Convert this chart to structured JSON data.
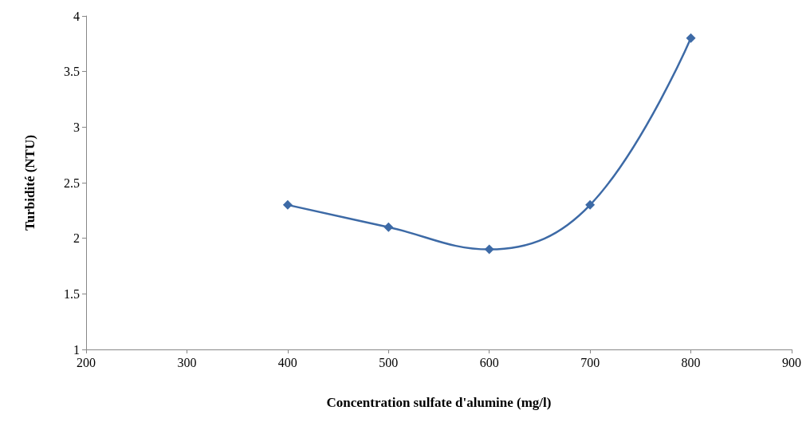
{
  "chart_data": {
    "type": "line",
    "xlabel": "Concentration sulfate d'alumine (mg/l)",
    "ylabel": "Turbidité (NTU)",
    "x": [
      400,
      500,
      600,
      700,
      800
    ],
    "series": [
      {
        "color": "#3d6aa6",
        "values": [
          2.3,
          2.1,
          1.9,
          2.3,
          3.8
        ]
      }
    ],
    "xlim": [
      200,
      900
    ],
    "xticks": [
      200,
      300,
      400,
      500,
      600,
      700,
      800,
      900
    ],
    "ylim": [
      1,
      4
    ],
    "yticks": [
      1,
      1.5,
      2,
      2.5,
      3,
      3.5,
      4
    ],
    "grid": false,
    "marker": "diamond",
    "line_style": "solid"
  }
}
